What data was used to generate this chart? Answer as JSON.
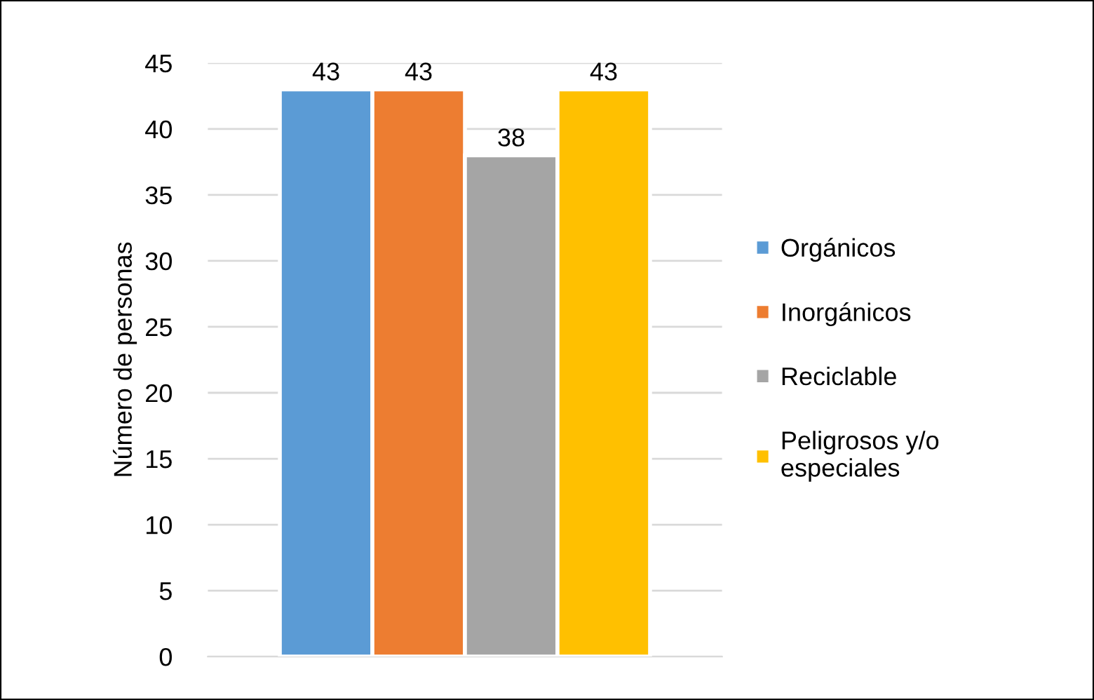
{
  "chart_data": {
    "type": "bar",
    "ylabel": "Número de personas",
    "categories": [
      null
    ],
    "series": [
      {
        "name": "Orgánicos",
        "color": "#5b9bd5",
        "values": [
          43
        ]
      },
      {
        "name": "Inorgánicos",
        "color": "#ed7d31",
        "values": [
          43
        ]
      },
      {
        "name": "Reciclable",
        "color": "#a5a5a5",
        "values": [
          38
        ]
      },
      {
        "name": "Peligrosos y/o\nespeciales",
        "color": "#ffc000",
        "values": [
          43
        ]
      }
    ],
    "ylim": [
      0,
      45
    ],
    "yticks": [
      0,
      5,
      10,
      15,
      20,
      25,
      30,
      35,
      40,
      45
    ],
    "grid": "y",
    "legend": "right",
    "data_labels": true
  }
}
